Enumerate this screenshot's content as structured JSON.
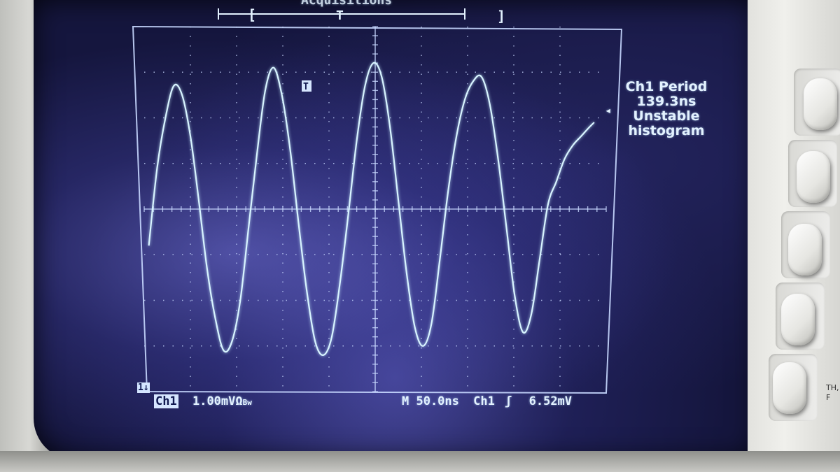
{
  "header": {
    "acquisitions_label": "Acquisitions"
  },
  "measurement": {
    "title": "Ch1 Period",
    "value": "139.3ns",
    "status": "Unstable",
    "note": "histogram"
  },
  "status_bar": {
    "channel": "Ch1",
    "volts_per_div": "1.00mV",
    "coupling_symbol": "Ω",
    "bw_symbol": "Bw",
    "timebase": "M 50.0ns",
    "trigger_source": "Ch1",
    "trigger_slope_symbol": "ʃ",
    "trigger_level": "6.52mV"
  },
  "markers": {
    "trigger_marker": "T",
    "ground_marker": "1↓",
    "timebase_bracket_left": "[",
    "timebase_bracket_right": "]",
    "timebase_trigger": "T",
    "level_arrow": "◂"
  },
  "colors": {
    "trace": "#d8f4ff",
    "graticule": "#c8d8ff",
    "screen_bg": "#15163e",
    "text": "#e3f2ff"
  },
  "bezel": {
    "side_text_line1": "TH,",
    "side_text_line2": "F"
  },
  "chart_data": {
    "type": "line",
    "title": "",
    "xlabel": "",
    "ylabel": "",
    "x_divisions": 10,
    "y_divisions": 8,
    "x_unit": "ns",
    "x_per_div": 50,
    "y_per_div": 1.0,
    "y_unit": "mV",
    "xlim": [
      -250,
      250
    ],
    "ylim": [
      -4,
      4
    ],
    "grid": true,
    "series": [
      {
        "x": [
          -245,
          -236,
          -227,
          -218,
          -209,
          -200,
          -191,
          -182,
          -173,
          -164,
          -155,
          -146,
          -137,
          -128,
          -119,
          -110,
          -101,
          -92,
          -83,
          -74,
          -65,
          -56,
          -47,
          -38,
          -29,
          -20,
          -11,
          -2,
          7,
          16,
          25,
          34,
          43,
          52,
          61,
          70,
          79,
          88,
          97,
          106,
          115,
          124,
          133,
          142,
          151,
          160,
          169,
          178,
          187,
          196,
          205,
          214,
          223,
          232,
          237
        ],
        "y": [
          -0.8,
          0.9,
          2.0,
          2.7,
          2.5,
          1.6,
          0.2,
          -1.3,
          -2.4,
          -3.1,
          -2.9,
          -2.0,
          -0.4,
          1.2,
          2.6,
          3.1,
          2.5,
          1.3,
          -0.3,
          -1.8,
          -2.9,
          -3.2,
          -2.8,
          -1.6,
          -0.1,
          1.5,
          2.7,
          3.2,
          2.9,
          1.8,
          0.2,
          -1.4,
          -2.6,
          -3.0,
          -2.5,
          -1.1,
          0.4,
          1.6,
          2.4,
          2.8,
          2.9,
          2.3,
          1.1,
          -0.4,
          -1.9,
          -2.7,
          -2.3,
          -1.1,
          0.1,
          0.6,
          1.1,
          1.4,
          1.6,
          1.8,
          1.9
        ]
      }
    ]
  }
}
